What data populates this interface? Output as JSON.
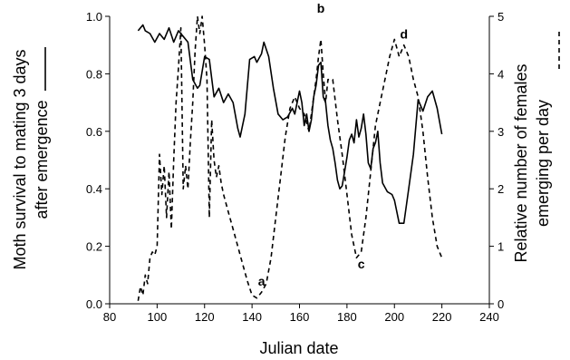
{
  "chart_data": {
    "type": "line",
    "xlabel": "Julian date",
    "ylabel_left": [
      "Moth survival to mating 3 days",
      "after emergence"
    ],
    "ylabel_right": [
      "Relative number of females",
      "emerging per day"
    ],
    "xlim": [
      80,
      240
    ],
    "ylim_left": [
      0,
      1
    ],
    "ylim_right": [
      0,
      5
    ],
    "x_ticks": [
      "80",
      "100",
      "120",
      "140",
      "160",
      "180",
      "200",
      "220",
      "240"
    ],
    "y_left_ticks": [
      "0.0",
      "0.2",
      "0.4",
      "0.6",
      "0.8",
      "1.0"
    ],
    "y_right_ticks": [
      "0",
      "1",
      "2",
      "3",
      "4",
      "5"
    ],
    "grid": false,
    "series": [
      {
        "axis": "left",
        "style": "solid",
        "x": [
          92,
          94,
          95,
          97,
          99,
          101,
          103,
          105,
          107,
          109,
          111,
          113,
          115,
          117,
          118,
          120,
          122,
          124,
          126,
          128,
          130,
          132,
          134,
          135,
          137,
          139,
          141,
          142,
          144,
          145,
          147,
          149,
          151,
          153,
          155,
          157,
          158,
          160,
          161,
          162,
          163,
          164,
          165,
          166,
          167,
          168,
          169,
          170,
          171,
          172,
          173,
          174,
          175,
          176,
          177,
          178,
          179,
          180,
          181,
          182,
          183,
          184,
          185,
          186,
          187,
          188,
          189,
          190,
          191,
          192,
          193,
          194,
          195,
          197,
          199,
          200,
          202,
          204,
          206,
          208,
          210,
          212,
          214,
          216,
          218,
          220
        ],
        "values": [
          0.95,
          0.97,
          0.95,
          0.94,
          0.91,
          0.94,
          0.92,
          0.96,
          0.91,
          0.95,
          0.93,
          0.91,
          0.78,
          0.75,
          0.76,
          0.86,
          0.85,
          0.72,
          0.75,
          0.7,
          0.73,
          0.7,
          0.61,
          0.58,
          0.66,
          0.85,
          0.86,
          0.84,
          0.87,
          0.91,
          0.86,
          0.75,
          0.66,
          0.64,
          0.65,
          0.68,
          0.66,
          0.74,
          0.7,
          0.62,
          0.66,
          0.6,
          0.64,
          0.72,
          0.76,
          0.83,
          0.84,
          0.72,
          0.7,
          0.62,
          0.57,
          0.54,
          0.49,
          0.43,
          0.4,
          0.41,
          0.46,
          0.51,
          0.57,
          0.59,
          0.56,
          0.64,
          0.58,
          0.61,
          0.66,
          0.59,
          0.49,
          0.47,
          0.54,
          0.56,
          0.6,
          0.49,
          0.42,
          0.39,
          0.38,
          0.36,
          0.28,
          0.28,
          0.4,
          0.52,
          0.71,
          0.67,
          0.72,
          0.74,
          0.68,
          0.59
        ]
      },
      {
        "axis": "right",
        "style": "dashed",
        "x": [
          92,
          93,
          94,
          95,
          96,
          97,
          98,
          99,
          100,
          101,
          102,
          103,
          104,
          105,
          106,
          107,
          108,
          109,
          110,
          111,
          112,
          113,
          114,
          115,
          116,
          117,
          118,
          119,
          120,
          121,
          122,
          123,
          124,
          125,
          126,
          127,
          128,
          130,
          132,
          134,
          136,
          138,
          140,
          142,
          144,
          146,
          148,
          150,
          152,
          154,
          156,
          158,
          160,
          162,
          164,
          166,
          167,
          168,
          169,
          170,
          171,
          172,
          174,
          176,
          178,
          180,
          182,
          184,
          186,
          188,
          190,
          192,
          194,
          196,
          198,
          200,
          202,
          204,
          206,
          208,
          210,
          212,
          214,
          216,
          218,
          220
        ],
        "values": [
          0.05,
          0.3,
          0.15,
          0.5,
          0.35,
          0.8,
          0.9,
          0.85,
          1.0,
          2.6,
          1.9,
          2.4,
          1.5,
          2.3,
          1.3,
          2.5,
          3.5,
          4.1,
          4.8,
          2.0,
          2.4,
          2.0,
          2.8,
          3.5,
          4.4,
          5.0,
          4.7,
          5.0,
          4.5,
          3.9,
          1.5,
          3.2,
          2.5,
          2.2,
          2.4,
          2.1,
          1.9,
          1.6,
          1.3,
          1.0,
          0.7,
          0.4,
          0.15,
          0.1,
          0.2,
          0.35,
          0.8,
          1.5,
          2.2,
          2.9,
          3.4,
          3.6,
          3.4,
          3.3,
          3.0,
          3.6,
          3.9,
          4.3,
          4.6,
          4.0,
          3.5,
          3.9,
          3.9,
          3.2,
          2.6,
          1.9,
          1.2,
          0.8,
          0.9,
          1.5,
          2.3,
          3.1,
          3.5,
          3.9,
          4.3,
          4.6,
          4.3,
          4.5,
          4.3,
          3.9,
          3.6,
          3.0,
          2.2,
          1.5,
          1.0,
          0.8
        ]
      }
    ],
    "annotations": [
      {
        "text": "a",
        "x": 144,
        "y_right": 0.25
      },
      {
        "text": "b",
        "x": 169,
        "y_right": 5.0
      },
      {
        "text": "c",
        "x": 186,
        "y_right": 0.55
      },
      {
        "text": "d",
        "x": 204,
        "y_right": 4.55
      }
    ],
    "legend_markers": [
      {
        "series": "left",
        "style": "solid",
        "position": "beside left axis title"
      },
      {
        "series": "right",
        "style": "dashed",
        "position": "beside right axis title"
      }
    ]
  }
}
